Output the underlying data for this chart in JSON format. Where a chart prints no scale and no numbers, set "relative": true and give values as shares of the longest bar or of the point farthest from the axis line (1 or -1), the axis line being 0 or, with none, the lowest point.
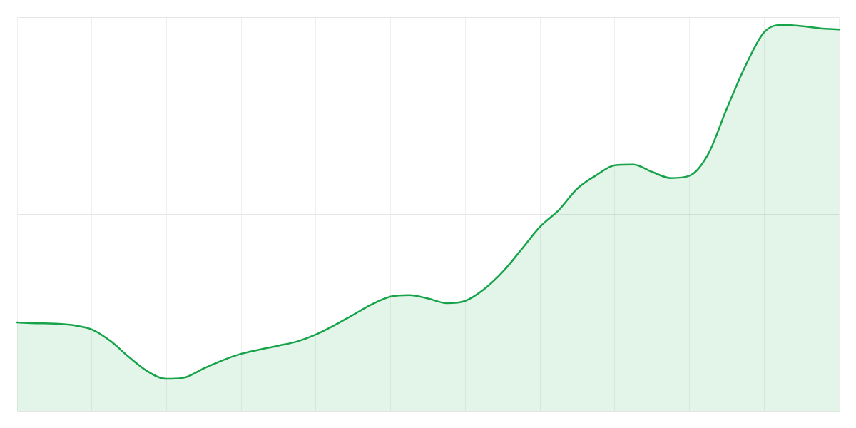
{
  "chart_data": {
    "type": "area",
    "relative": true,
    "grid": true,
    "marker": "none",
    "line_style": "solid",
    "categories": [
      null,
      null,
      null,
      null,
      null,
      null,
      null,
      null,
      null,
      null,
      null,
      null,
      null,
      null,
      null,
      null,
      null,
      null,
      null,
      null,
      null,
      null,
      null,
      null,
      null,
      null,
      null,
      null,
      null,
      null,
      null,
      null,
      null,
      null,
      null,
      null,
      null,
      null,
      null,
      null,
      null,
      null,
      null,
      null,
      null
    ],
    "series": [
      {
        "color": "#16a34a",
        "values": [
          0.229,
          0.227,
          0.226,
          0.222,
          0.211,
          0.181,
          0.139,
          0.102,
          0.083,
          0.087,
          0.11,
          0.131,
          0.148,
          0.159,
          0.169,
          0.18,
          0.198,
          0.222,
          0.249,
          0.276,
          0.296,
          0.3,
          0.291,
          0.279,
          0.285,
          0.315,
          0.36,
          0.418,
          0.477,
          0.52,
          0.576,
          0.61,
          0.636,
          0.638,
          0.619,
          0.603,
          0.609,
          0.665,
          0.783,
          0.894,
          0.981,
          1,
          0.997,
          0.991,
          0.988
        ]
      }
    ]
  }
}
